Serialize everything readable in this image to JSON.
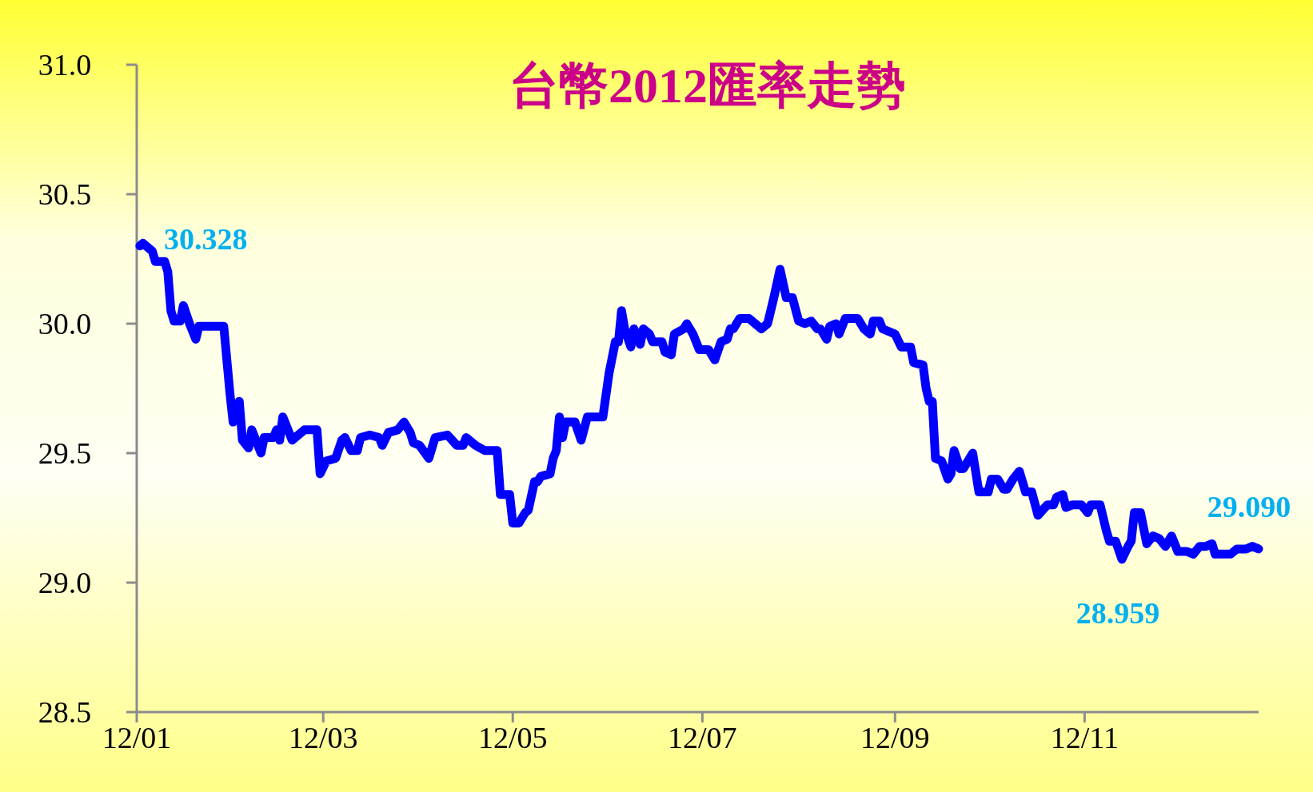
{
  "chart_data": {
    "type": "line",
    "title": "台幣2012匯率走勢",
    "x": [
      "2012-01-02",
      "2012-01-03",
      "2012-01-06",
      "2012-01-07",
      "2012-01-10",
      "2012-01-11",
      "2012-01-12",
      "2012-01-13",
      "2012-01-15",
      "2012-01-16",
      "2012-01-18",
      "2012-01-20",
      "2012-01-21",
      "2012-01-29",
      "2012-01-31",
      "2012-02-01",
      "2012-02-03",
      "2012-02-04",
      "2012-02-06",
      "2012-02-07",
      "2012-02-10",
      "2012-02-11",
      "2012-02-14",
      "2012-02-15",
      "2012-02-16",
      "2012-02-17",
      "2012-02-19",
      "2012-02-20",
      "2012-02-24",
      "2012-02-28",
      "2012-02-29",
      "2012-03-02",
      "2012-03-05",
      "2012-03-07",
      "2012-03-08",
      "2012-03-10",
      "2012-03-12",
      "2012-03-13",
      "2012-03-16",
      "2012-03-19",
      "2012-03-20",
      "2012-03-22",
      "2012-03-25",
      "2012-03-27",
      "2012-03-29",
      "2012-03-30",
      "2012-04-01",
      "2012-04-04",
      "2012-04-06",
      "2012-04-10",
      "2012-04-13",
      "2012-04-15",
      "2012-04-16",
      "2012-04-19",
      "2012-04-22",
      "2012-04-26",
      "2012-04-27",
      "2012-04-30",
      "2012-05-01",
      "2012-05-03",
      "2012-05-05",
      "2012-05-06",
      "2012-05-08",
      "2012-05-09",
      "2012-05-10",
      "2012-05-13",
      "2012-05-14",
      "2012-05-15",
      "2012-05-16",
      "2012-05-17",
      "2012-05-18",
      "2012-05-21",
      "2012-05-23",
      "2012-05-25",
      "2012-05-30",
      "2012-06-01",
      "2012-06-03",
      "2012-06-04",
      "2012-06-05",
      "2012-06-06",
      "2012-06-08",
      "2012-06-09",
      "2012-06-11",
      "2012-06-12",
      "2012-06-14",
      "2012-06-15",
      "2012-06-18",
      "2012-06-19",
      "2012-06-21",
      "2012-06-22",
      "2012-06-25",
      "2012-06-26",
      "2012-06-28",
      "2012-06-30",
      "2012-07-03",
      "2012-07-05",
      "2012-07-07",
      "2012-07-09",
      "2012-07-10",
      "2012-07-11",
      "2012-07-13",
      "2012-07-16",
      "2012-07-19",
      "2012-07-20",
      "2012-07-22",
      "2012-07-24",
      "2012-07-26",
      "2012-07-28",
      "2012-07-30",
      "2012-08-01",
      "2012-08-03",
      "2012-08-05",
      "2012-08-07",
      "2012-08-08",
      "2012-08-10",
      "2012-08-11",
      "2012-08-13",
      "2012-08-14",
      "2012-08-16",
      "2012-08-20",
      "2012-08-22",
      "2012-08-24",
      "2012-08-25",
      "2012-08-27",
      "2012-08-28",
      "2012-08-30",
      "2012-09-01",
      "2012-09-03",
      "2012-09-06",
      "2012-09-07",
      "2012-09-10",
      "2012-09-11",
      "2012-09-12",
      "2012-09-13",
      "2012-09-14",
      "2012-09-16",
      "2012-09-18",
      "2012-09-19",
      "2012-09-20",
      "2012-09-22",
      "2012-09-23",
      "2012-09-26",
      "2012-09-28",
      "2012-10-01",
      "2012-10-02",
      "2012-10-04",
      "2012-10-06",
      "2012-10-07",
      "2012-10-09",
      "2012-10-11",
      "2012-10-13",
      "2012-10-15",
      "2012-10-17",
      "2012-10-20",
      "2012-10-22",
      "2012-10-23",
      "2012-10-25",
      "2012-10-26",
      "2012-10-28",
      "2012-10-31",
      "2012-11-02",
      "2012-11-03",
      "2012-11-06",
      "2012-11-08",
      "2012-11-09",
      "2012-11-11",
      "2012-11-13",
      "2012-11-15",
      "2012-11-16",
      "2012-11-17",
      "2012-11-19",
      "2012-11-21",
      "2012-11-23",
      "2012-11-25",
      "2012-11-27",
      "2012-11-29",
      "2012-12-01",
      "2012-12-04",
      "2012-12-06",
      "2012-12-08",
      "2012-12-10",
      "2012-12-12",
      "2012-12-13",
      "2012-12-18",
      "2012-12-20",
      "2012-12-23",
      "2012-12-25",
      "2012-12-27"
    ],
    "series": [
      {
        "color": "#0000ff",
        "values": [
          30.3,
          30.31,
          30.28,
          30.24,
          30.24,
          30.2,
          30.05,
          30.01,
          30.01,
          30.07,
          30.0,
          29.94,
          29.99,
          29.99,
          29.73,
          29.62,
          29.7,
          29.55,
          29.52,
          29.59,
          29.5,
          29.56,
          29.56,
          29.59,
          29.55,
          29.64,
          29.58,
          29.55,
          29.59,
          29.59,
          29.42,
          29.47,
          29.48,
          29.55,
          29.56,
          29.51,
          29.51,
          29.56,
          29.57,
          29.56,
          29.53,
          29.58,
          29.59,
          29.62,
          29.58,
          29.54,
          29.53,
          29.48,
          29.56,
          29.57,
          29.53,
          29.53,
          29.56,
          29.53,
          29.51,
          29.51,
          29.34,
          29.34,
          29.23,
          29.23,
          29.27,
          29.28,
          29.39,
          29.39,
          29.41,
          29.42,
          29.48,
          29.51,
          29.64,
          29.56,
          29.62,
          29.62,
          29.55,
          29.64,
          29.64,
          29.81,
          29.93,
          29.93,
          30.05,
          29.98,
          29.91,
          29.98,
          29.92,
          29.98,
          29.96,
          29.93,
          29.93,
          29.89,
          29.88,
          29.96,
          29.98,
          30.0,
          29.96,
          29.9,
          29.9,
          29.86,
          29.93,
          29.94,
          29.98,
          29.98,
          30.02,
          30.02,
          29.99,
          29.98,
          30.0,
          30.1,
          30.21,
          30.1,
          30.1,
          30.01,
          30.0,
          30.01,
          29.98,
          29.98,
          29.94,
          29.99,
          30.0,
          29.96,
          30.02,
          30.02,
          29.98,
          29.96,
          30.01,
          30.01,
          29.98,
          29.97,
          29.96,
          29.91,
          29.91,
          29.85,
          29.84,
          29.75,
          29.7,
          29.7,
          29.48,
          29.47,
          29.4,
          29.42,
          29.51,
          29.44,
          29.44,
          29.5,
          29.35,
          29.35,
          29.4,
          29.4,
          29.36,
          29.36,
          29.4,
          29.43,
          29.35,
          29.35,
          29.26,
          29.3,
          29.3,
          29.33,
          29.34,
          29.29,
          29.3,
          29.3,
          29.27,
          29.3,
          29.3,
          29.2,
          29.16,
          29.16,
          29.09,
          29.14,
          29.16,
          29.27,
          29.27,
          29.15,
          29.18,
          29.17,
          29.14,
          29.18,
          29.12,
          29.12,
          29.11,
          29.14,
          29.14,
          29.15,
          29.11,
          29.11,
          29.13,
          29.13,
          29.14,
          29.13
        ]
      }
    ],
    "xlim": [
      "2012-01-01",
      "2012-12-27"
    ],
    "ylim": [
      28.5,
      31.0
    ],
    "xticks": [
      {
        "value": "2012-01-01",
        "label": "12/01"
      },
      {
        "value": "2012-03-01",
        "label": "12/03"
      },
      {
        "value": "2012-05-01",
        "label": "12/05"
      },
      {
        "value": "2012-07-01",
        "label": "12/07"
      },
      {
        "value": "2012-09-01",
        "label": "12/09"
      },
      {
        "value": "2012-11-01",
        "label": "12/11"
      }
    ],
    "yticks": [
      {
        "value": 28.5,
        "label": "28.5"
      },
      {
        "value": 29.0,
        "label": "29.0"
      },
      {
        "value": 29.5,
        "label": "29.5"
      },
      {
        "value": 30.0,
        "label": "30.0"
      },
      {
        "value": 30.5,
        "label": "30.5"
      },
      {
        "value": 31.0,
        "label": "31.0"
      }
    ],
    "annotations": [
      "30.328",
      "28.959",
      "29.090"
    ]
  }
}
